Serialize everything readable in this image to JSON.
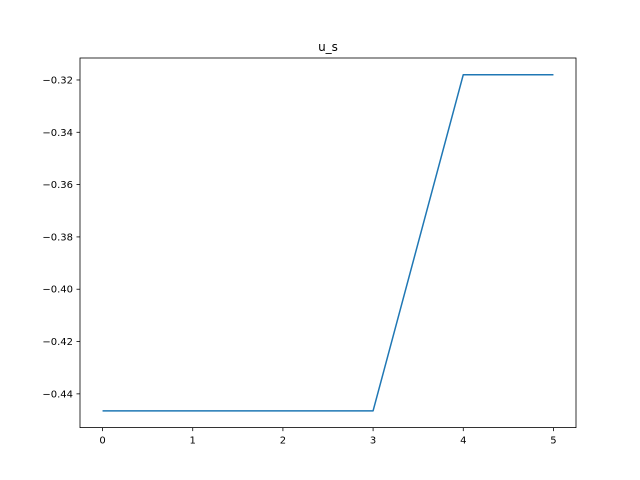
{
  "chart_data": {
    "type": "line",
    "title": "u_s",
    "xlabel": "",
    "ylabel": "",
    "x": [
      0,
      1,
      2,
      3,
      4,
      5
    ],
    "series": [
      {
        "values": [
          -0.4465,
          -0.4465,
          -0.4465,
          -0.4465,
          -0.318,
          -0.318
        ],
        "color": "#1f77b4"
      }
    ],
    "xlim": [
      -0.25,
      5.25
    ],
    "ylim": [
      -0.4529,
      -0.3116
    ],
    "xticks": [
      0,
      1,
      2,
      3,
      4,
      5
    ],
    "xtick_labels": [
      "0",
      "1",
      "2",
      "3",
      "4",
      "5"
    ],
    "yticks": [
      -0.44,
      -0.42,
      -0.4,
      -0.38,
      -0.36,
      -0.34,
      -0.32
    ],
    "ytick_labels": [
      "−0.44",
      "−0.42",
      "−0.40",
      "−0.38",
      "−0.36",
      "−0.34",
      "−0.32"
    ],
    "grid": false,
    "legend": "none"
  }
}
